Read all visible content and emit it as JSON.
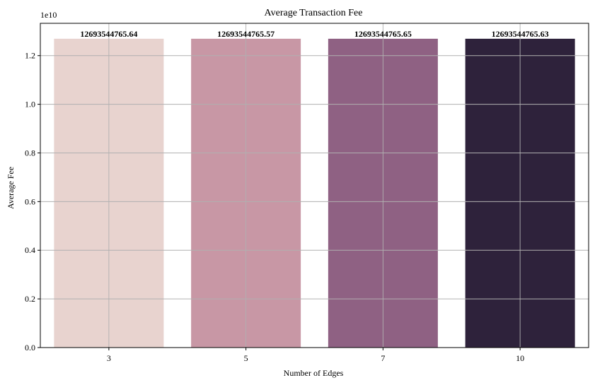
{
  "chart_data": {
    "type": "bar",
    "title": "Average Transaction Fee",
    "xlabel": "Number of Edges",
    "ylabel": "Average Fee",
    "categories": [
      "3",
      "5",
      "7",
      "10"
    ],
    "values": [
      12693544765.64,
      12693544765.57,
      12693544765.65,
      12693544765.63
    ],
    "data_labels": [
      "12693544765.64",
      "12693544765.57",
      "12693544765.65",
      "12693544765.63"
    ],
    "bar_colors": [
      "#e8d3cf",
      "#c897a5",
      "#8f6183",
      "#2e223b"
    ],
    "y_offset_text": "1e10",
    "y_scale": 10000000000,
    "ylim": [
      0,
      13328222003.92
    ],
    "y_ticks": [
      0,
      2000000000,
      4000000000,
      6000000000,
      8000000000,
      10000000000,
      12000000000
    ],
    "y_tick_labels": [
      "0.0",
      "0.2",
      "0.4",
      "0.6",
      "0.8",
      "1.0",
      "1.2"
    ],
    "grid": true
  }
}
